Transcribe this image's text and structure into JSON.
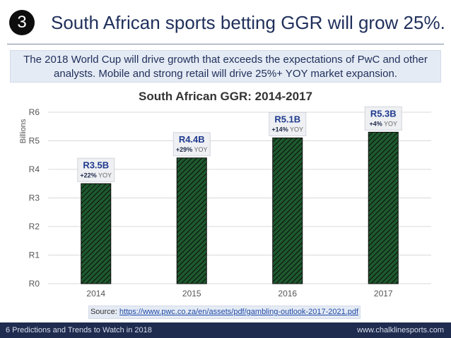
{
  "header": {
    "number": "3",
    "title": "South African sports betting GGR will grow 25%."
  },
  "subtitle": "The 2018 World Cup will drive growth that exceeds the expectations of PwC and other analysts. Mobile and strong retail will drive 25%+ YOY market expansion.",
  "chart_data": {
    "type": "bar",
    "title": "South African GGR: 2014-2017",
    "xlabel": "",
    "ylabel": "Billions",
    "categories": [
      "2014",
      "2015",
      "2016",
      "2017"
    ],
    "values": [
      3.5,
      4.4,
      5.1,
      5.3
    ],
    "ylim": [
      0,
      6
    ],
    "y_ticks": [
      {
        "value": 0,
        "label": "R0"
      },
      {
        "value": 1,
        "label": "R1"
      },
      {
        "value": 2,
        "label": "R2"
      },
      {
        "value": 3,
        "label": "R3"
      },
      {
        "value": 4,
        "label": "R4"
      },
      {
        "value": 5,
        "label": "R5"
      },
      {
        "value": 6,
        "label": "R6"
      }
    ],
    "grid": true,
    "bar_pattern": "diagonal-hatch",
    "colors": {
      "bar": "#1e5a2e",
      "bar_line": "#0b0b0b",
      "label_value": "#1f3a8f"
    },
    "data_labels": [
      {
        "value": "R3.5B",
        "pct": "+22%",
        "suffix": "YOY"
      },
      {
        "value": "R4.4B",
        "pct": "+29%",
        "suffix": "YOY"
      },
      {
        "value": "R5.1B",
        "pct": "+14%",
        "suffix": "YOY"
      },
      {
        "value": "R5.3B",
        "pct": "+4%",
        "suffix": "YOY"
      }
    ]
  },
  "source": {
    "label": "Source:",
    "url": "https://www.pwc.co.za/en/assets/pdf/gambling-outlook-2017-2021.pdf"
  },
  "footer": {
    "left": "6 Predictions and Trends to Watch in 2018",
    "right": "www.chalklinesports.com"
  },
  "colors": {
    "navy": "#1f2b4f",
    "title": "#20305c",
    "box_bg": "#e5ebf4"
  }
}
